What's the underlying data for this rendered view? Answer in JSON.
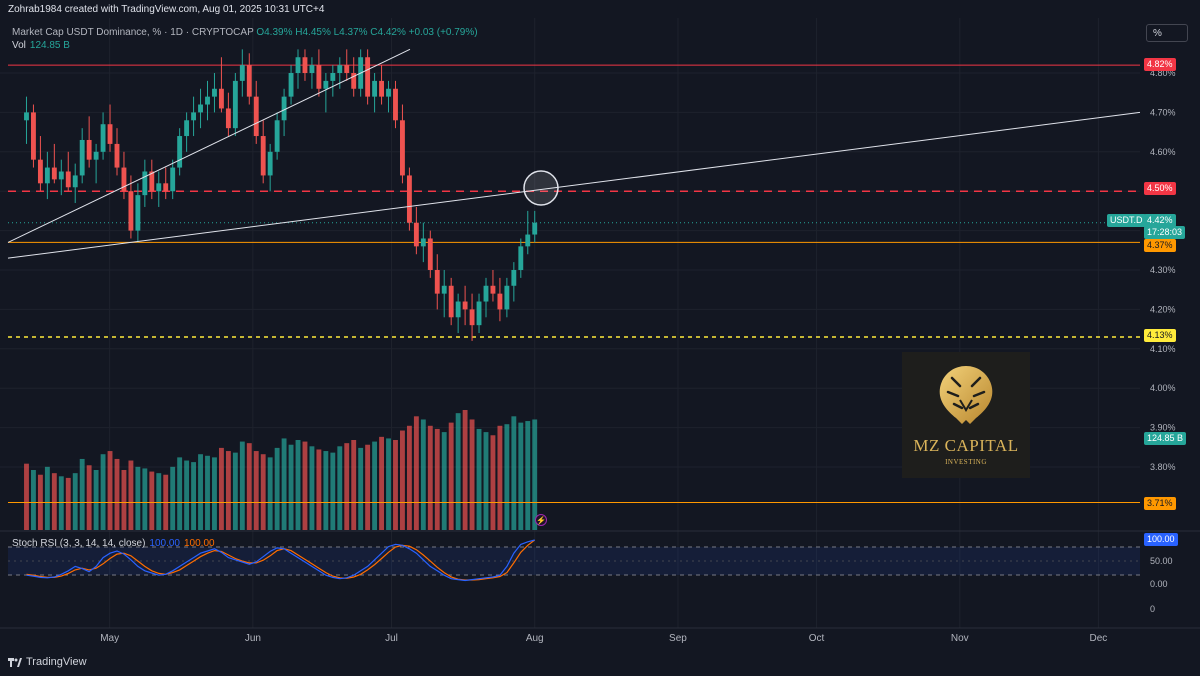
{
  "header": {
    "creator": "Zohrab1984 created with TradingView.com, Aug 01, 2025 10:31 UTC+4",
    "symbol_line": "Market Cap USDT Dominance, %  · 1D · CRYPTOCAP",
    "ohlc": "O4.39%  H4.45%  L4.37%  C4.42%  +0.03 (+0.79%)",
    "vol_label": "Vol",
    "vol_value": "124.85 B"
  },
  "toolbar": {
    "percent_button": "%"
  },
  "price_axis": {
    "ticks": [
      "4.80%",
      "4.70%",
      "4.60%",
      "4.50%",
      "4.40%",
      "4.30%",
      "4.20%",
      "4.10%",
      "4.00%",
      "3.90%",
      "3.80%"
    ],
    "badges": {
      "level_482": "4.82%",
      "level_450": "4.50%",
      "symbol_tag": "USDT.D",
      "last_price": "4.42%",
      "countdown": "17:28:03",
      "level_437": "4.37%",
      "level_413": "4.13%",
      "volume": "124.85 B",
      "level_371": "3.71%"
    }
  },
  "time_axis": {
    "labels": [
      "May",
      "Jun",
      "Jul",
      "Aug",
      "Sep",
      "Oct",
      "Nov",
      "Dec"
    ]
  },
  "stoch_rsi": {
    "label": "Stoch RSI (3, 3, 14, 14, close)",
    "k_value": "100.00",
    "d_value": "100.00",
    "axis_ticks": [
      "100.00",
      "50.00",
      "0.00",
      "0"
    ],
    "current_badge": "100.00"
  },
  "watermark": {
    "name": "MZ CAPITAL",
    "sub": "INVESTING"
  },
  "branding": {
    "text": "TradingView"
  },
  "colors": {
    "background": "#131722",
    "bull": "#26a69a",
    "bear": "#ef5350",
    "resistance": "#f23645",
    "support": "#ff9800",
    "low_level": "#ffeb3b",
    "stoch_k": "#2962ff",
    "stoch_d": "#ff6d00"
  },
  "chart_data": {
    "type": "candlestick",
    "symbol": "USDT.D",
    "timeframe": "1D",
    "x_range": [
      "2025-04-09",
      "2025-12-10"
    ],
    "y_range": [
      3.75,
      4.86
    ],
    "candles": [
      [
        4.68,
        4.74,
        4.62,
        4.7
      ],
      [
        4.7,
        4.72,
        4.56,
        4.58
      ],
      [
        4.58,
        4.64,
        4.5,
        4.52
      ],
      [
        4.52,
        4.6,
        4.48,
        4.56
      ],
      [
        4.56,
        4.62,
        4.52,
        4.53
      ],
      [
        4.53,
        4.58,
        4.49,
        4.55
      ],
      [
        4.55,
        4.6,
        4.5,
        4.51
      ],
      [
        4.51,
        4.57,
        4.47,
        4.54
      ],
      [
        4.54,
        4.66,
        4.52,
        4.63
      ],
      [
        4.63,
        4.69,
        4.56,
        4.58
      ],
      [
        4.58,
        4.62,
        4.52,
        4.6
      ],
      [
        4.6,
        4.7,
        4.58,
        4.67
      ],
      [
        4.67,
        4.72,
        4.6,
        4.62
      ],
      [
        4.62,
        4.66,
        4.54,
        4.56
      ],
      [
        4.56,
        4.6,
        4.48,
        4.5
      ],
      [
        4.5,
        4.54,
        4.38,
        4.4
      ],
      [
        4.4,
        4.52,
        4.37,
        4.49
      ],
      [
        4.49,
        4.58,
        4.46,
        4.55
      ],
      [
        4.55,
        4.58,
        4.48,
        4.5
      ],
      [
        4.5,
        4.55,
        4.46,
        4.52
      ],
      [
        4.52,
        4.56,
        4.48,
        4.5
      ],
      [
        4.5,
        4.58,
        4.48,
        4.56
      ],
      [
        4.56,
        4.66,
        4.54,
        4.64
      ],
      [
        4.64,
        4.7,
        4.6,
        4.68
      ],
      [
        4.68,
        4.74,
        4.64,
        4.7
      ],
      [
        4.7,
        4.76,
        4.66,
        4.72
      ],
      [
        4.72,
        4.78,
        4.68,
        4.74
      ],
      [
        4.74,
        4.8,
        4.7,
        4.76
      ],
      [
        4.76,
        4.84,
        4.7,
        4.71
      ],
      [
        4.71,
        4.75,
        4.64,
        4.66
      ],
      [
        4.66,
        4.8,
        4.64,
        4.78
      ],
      [
        4.78,
        4.86,
        4.74,
        4.82
      ],
      [
        4.82,
        4.85,
        4.72,
        4.74
      ],
      [
        4.74,
        4.78,
        4.62,
        4.64
      ],
      [
        4.64,
        4.68,
        4.52,
        4.54
      ],
      [
        4.54,
        4.62,
        4.5,
        4.6
      ],
      [
        4.6,
        4.7,
        4.58,
        4.68
      ],
      [
        4.68,
        4.76,
        4.64,
        4.74
      ],
      [
        4.74,
        4.82,
        4.72,
        4.8
      ],
      [
        4.8,
        4.86,
        4.76,
        4.84
      ],
      [
        4.84,
        4.86,
        4.78,
        4.8
      ],
      [
        4.8,
        4.84,
        4.76,
        4.82
      ],
      [
        4.82,
        4.86,
        4.74,
        4.76
      ],
      [
        4.76,
        4.8,
        4.7,
        4.78
      ],
      [
        4.78,
        4.82,
        4.74,
        4.8
      ],
      [
        4.8,
        4.84,
        4.76,
        4.82
      ],
      [
        4.82,
        4.86,
        4.78,
        4.8
      ],
      [
        4.8,
        4.84,
        4.74,
        4.76
      ],
      [
        4.76,
        4.86,
        4.74,
        4.84
      ],
      [
        4.84,
        4.86,
        4.72,
        4.74
      ],
      [
        4.74,
        4.8,
        4.7,
        4.78
      ],
      [
        4.78,
        4.82,
        4.72,
        4.74
      ],
      [
        4.74,
        4.78,
        4.7,
        4.76
      ],
      [
        4.76,
        4.78,
        4.66,
        4.68
      ],
      [
        4.68,
        4.72,
        4.52,
        4.54
      ],
      [
        4.54,
        4.56,
        4.4,
        4.42
      ],
      [
        4.42,
        4.46,
        4.34,
        4.36
      ],
      [
        4.36,
        4.42,
        4.32,
        4.38
      ],
      [
        4.38,
        4.4,
        4.28,
        4.3
      ],
      [
        4.3,
        4.34,
        4.2,
        4.24
      ],
      [
        4.24,
        4.3,
        4.18,
        4.26
      ],
      [
        4.26,
        4.28,
        4.16,
        4.18
      ],
      [
        4.18,
        4.24,
        4.14,
        4.22
      ],
      [
        4.22,
        4.26,
        4.16,
        4.2
      ],
      [
        4.2,
        4.24,
        4.12,
        4.16
      ],
      [
        4.16,
        4.24,
        4.14,
        4.22
      ],
      [
        4.22,
        4.28,
        4.18,
        4.26
      ],
      [
        4.26,
        4.3,
        4.22,
        4.24
      ],
      [
        4.24,
        4.28,
        4.17,
        4.2
      ],
      [
        4.2,
        4.28,
        4.18,
        4.26
      ],
      [
        4.26,
        4.32,
        4.22,
        4.3
      ],
      [
        4.3,
        4.38,
        4.28,
        4.36
      ],
      [
        4.36,
        4.45,
        4.34,
        4.39
      ],
      [
        4.39,
        4.45,
        4.37,
        4.42
      ]
    ],
    "volume": [
      42,
      38,
      35,
      40,
      36,
      34,
      33,
      36,
      45,
      41,
      38,
      48,
      50,
      45,
      38,
      44,
      40,
      39,
      37,
      36,
      35,
      40,
      46,
      44,
      43,
      48,
      47,
      46,
      52,
      50,
      49,
      56,
      55,
      50,
      48,
      46,
      52,
      58,
      54,
      57,
      56,
      53,
      51,
      50,
      49,
      53,
      55,
      57,
      52,
      54,
      56,
      59,
      58,
      57,
      63,
      66,
      72,
      70,
      66,
      64,
      62,
      68,
      74,
      76,
      70,
      64,
      62,
      60,
      66,
      67,
      72,
      68,
      69,
      70
    ],
    "volume_bull": [
      false,
      true,
      false,
      true,
      false,
      true,
      false,
      true,
      true,
      false,
      true,
      true,
      false,
      false,
      false,
      false,
      true,
      true,
      false,
      true,
      false,
      true,
      true,
      true,
      true,
      true,
      true,
      true,
      false,
      false,
      true,
      true,
      false,
      false,
      false,
      true,
      true,
      true,
      true,
      true,
      false,
      true,
      false,
      true,
      true,
      true,
      false,
      false,
      true,
      false,
      true,
      false,
      true,
      false,
      false,
      false,
      false,
      true,
      false,
      false,
      true,
      false,
      true,
      false,
      false,
      true,
      true,
      false,
      false,
      true,
      true,
      true,
      true,
      true
    ],
    "horizontal_levels": [
      {
        "price": 4.82,
        "style": "solid",
        "color": "#f23645"
      },
      {
        "price": 4.5,
        "style": "dashed",
        "color": "#f23645"
      },
      {
        "price": 4.37,
        "style": "solid",
        "color": "#ff9800"
      },
      {
        "price": 4.13,
        "style": "dashed",
        "color": "#ffeb3b"
      },
      {
        "price": 3.71,
        "style": "solid",
        "color": "#ff9800"
      }
    ],
    "trendlines": [
      {
        "from": [
          "2025-04-09",
          4.37
        ],
        "to": [
          "2025-07-05",
          4.86
        ]
      },
      {
        "from": [
          "2025-04-09",
          4.33
        ],
        "to": [
          "2025-12-10",
          4.7
        ]
      }
    ],
    "stoch_rsi_k": [
      20,
      18,
      15,
      14,
      16,
      22,
      30,
      40,
      35,
      28,
      40,
      60,
      70,
      75,
      68,
      55,
      40,
      30,
      25,
      20,
      22,
      30,
      40,
      50,
      60,
      70,
      75,
      80,
      72,
      60,
      55,
      50,
      45,
      50,
      62,
      74,
      82,
      80,
      70,
      60,
      50,
      40,
      30,
      20,
      15,
      12,
      14,
      20,
      30,
      40,
      55,
      70,
      85,
      90,
      88,
      80,
      70,
      55,
      40,
      30,
      20,
      12,
      10,
      8,
      10,
      12,
      14,
      16,
      20,
      40,
      70,
      90,
      96,
      100
    ],
    "stoch_rsi_d": [
      22,
      20,
      17,
      15,
      15,
      18,
      24,
      32,
      36,
      32,
      36,
      46,
      58,
      68,
      70,
      64,
      52,
      40,
      30,
      24,
      22,
      26,
      32,
      42,
      52,
      62,
      70,
      76,
      74,
      66,
      58,
      52,
      48,
      48,
      54,
      64,
      76,
      80,
      76,
      66,
      56,
      46,
      36,
      26,
      18,
      14,
      13,
      16,
      22,
      32,
      44,
      58,
      72,
      84,
      88,
      86,
      78,
      66,
      52,
      38,
      26,
      16,
      11,
      9,
      9,
      10,
      12,
      14,
      17,
      26,
      48,
      72,
      88,
      100
    ]
  }
}
